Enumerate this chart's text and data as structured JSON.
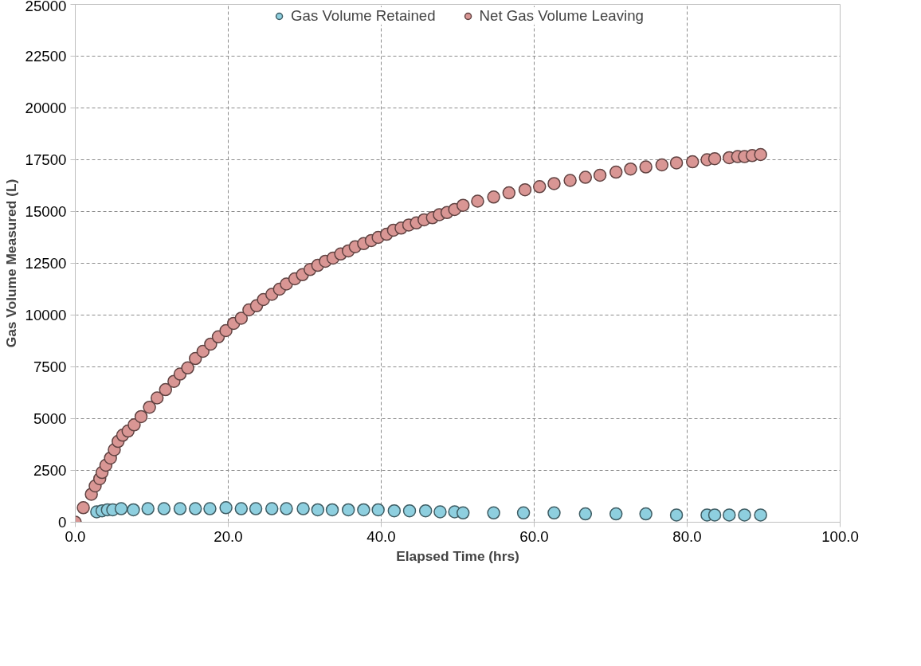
{
  "chart_data": {
    "type": "scatter",
    "xlabel": "Elapsed Time (hrs)",
    "ylabel": "Gas Volume Measured (L)",
    "xlim": [
      0,
      100
    ],
    "ylim": [
      0,
      25000
    ],
    "xticks": [
      {
        "value": 0,
        "label": "0.0"
      },
      {
        "value": 20,
        "label": "20.0"
      },
      {
        "value": 40,
        "label": "40.0"
      },
      {
        "value": 60,
        "label": "60.0"
      },
      {
        "value": 80,
        "label": "80.0"
      },
      {
        "value": 100,
        "label": "100.0"
      }
    ],
    "yticks": [
      0,
      2500,
      5000,
      7500,
      10000,
      12500,
      15000,
      17500,
      20000,
      22500,
      25000
    ],
    "grid": true,
    "legend": "top",
    "marker": "circle",
    "series": [
      {
        "name": "Gas Volume Retained",
        "color": "#8ecfdf",
        "x": [
          2.8,
          3.5,
          4.2,
          4.9,
          6.0,
          7.6,
          9.5,
          11.6,
          13.7,
          15.7,
          17.6,
          19.7,
          21.7,
          23.6,
          25.7,
          27.6,
          29.8,
          31.7,
          33.6,
          35.7,
          37.7,
          39.6,
          41.7,
          43.7,
          45.8,
          47.7,
          49.6,
          50.7,
          54.7,
          58.6,
          62.6,
          66.7,
          70.7,
          74.6,
          78.6,
          82.6,
          83.6,
          85.5,
          87.5,
          89.6
        ],
        "values": [
          500,
          550,
          600,
          600,
          650,
          600,
          650,
          650,
          650,
          650,
          650,
          700,
          650,
          650,
          650,
          650,
          650,
          600,
          600,
          600,
          600,
          600,
          550,
          550,
          550,
          500,
          500,
          450,
          450,
          450,
          450,
          400,
          400,
          400,
          350,
          350,
          350,
          350,
          350,
          350
        ]
      },
      {
        "name": "Net Gas Volume Leaving",
        "color": "#d99694",
        "x": [
          0,
          1.05,
          2.1,
          2.6,
          3.2,
          3.5,
          4.0,
          4.6,
          5.1,
          5.6,
          6.2,
          6.9,
          7.7,
          8.6,
          9.7,
          10.7,
          11.8,
          12.9,
          13.7,
          14.7,
          15.7,
          16.7,
          17.7,
          18.7,
          19.7,
          20.7,
          21.7,
          22.7,
          23.7,
          24.6,
          25.7,
          26.7,
          27.6,
          28.7,
          29.7,
          30.7,
          31.7,
          32.7,
          33.7,
          34.7,
          35.7,
          36.6,
          37.7,
          38.7,
          39.6,
          40.7,
          41.6,
          42.6,
          43.6,
          44.6,
          45.6,
          46.7,
          47.6,
          48.6,
          49.6,
          50.7,
          52.6,
          54.7,
          56.7,
          58.8,
          60.7,
          62.6,
          64.7,
          66.7,
          68.6,
          70.7,
          72.6,
          74.6,
          76.7,
          78.6,
          80.7,
          82.6,
          83.6,
          85.5,
          86.6,
          87.5,
          88.5,
          89.6
        ],
        "values": [
          0,
          700,
          1350,
          1750,
          2100,
          2400,
          2750,
          3100,
          3500,
          3900,
          4200,
          4400,
          4700,
          5100,
          5550,
          6000,
          6400,
          6800,
          7150,
          7450,
          7900,
          8250,
          8600,
          8950,
          9250,
          9600,
          9850,
          10250,
          10450,
          10750,
          11000,
          11250,
          11500,
          11750,
          11950,
          12200,
          12400,
          12600,
          12750,
          12950,
          13100,
          13300,
          13450,
          13600,
          13750,
          13900,
          14100,
          14200,
          14350,
          14450,
          14600,
          14700,
          14850,
          14950,
          15100,
          15300,
          15500,
          15700,
          15900,
          16050,
          16200,
          16350,
          16500,
          16650,
          16750,
          16900,
          17050,
          17150,
          17250,
          17350,
          17400,
          17500,
          17550,
          17600,
          17650,
          17650,
          17700,
          17750
        ]
      }
    ]
  }
}
